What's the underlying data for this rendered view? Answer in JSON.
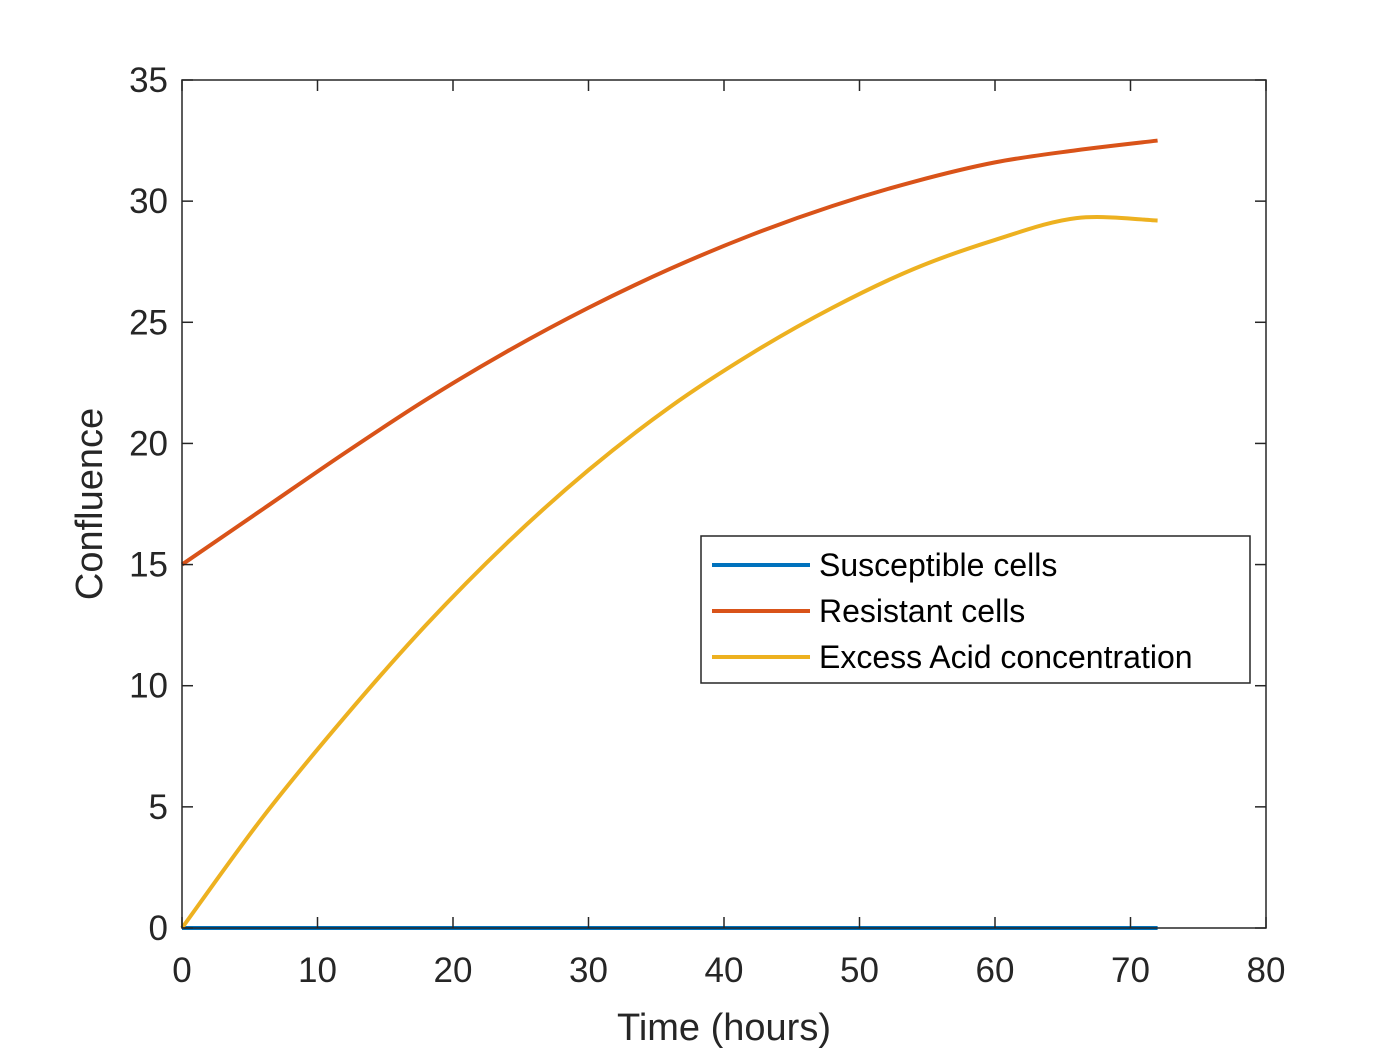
{
  "chart_data": {
    "type": "line",
    "title": "",
    "xlabel": "Time (hours)",
    "ylabel": "Confluence",
    "xlim": [
      0,
      80
    ],
    "ylim": [
      0,
      35
    ],
    "xticks": [
      0,
      10,
      20,
      30,
      40,
      50,
      60,
      70,
      80
    ],
    "yticks": [
      0,
      5,
      10,
      15,
      20,
      25,
      30,
      35
    ],
    "grid": false,
    "legend_position": "center-right",
    "x": [
      0,
      6,
      12,
      18,
      24,
      30,
      36,
      42,
      48,
      54,
      60,
      66,
      72
    ],
    "series": [
      {
        "name": "Susceptible cells",
        "color": "#0072BD",
        "values": [
          0,
          0,
          0,
          0,
          0,
          0,
          0,
          0,
          0,
          0,
          0,
          0,
          0
        ]
      },
      {
        "name": "Resistant cells",
        "color": "#D95319",
        "values": [
          15.0,
          17.3,
          19.6,
          21.8,
          23.8,
          25.6,
          27.2,
          28.6,
          29.8,
          30.8,
          31.6,
          32.1,
          32.5
        ]
      },
      {
        "name": "Excess Acid concentration",
        "color": "#EDB120",
        "values": [
          0,
          4.6,
          8.7,
          12.5,
          15.9,
          18.9,
          21.5,
          23.7,
          25.6,
          27.2,
          28.4,
          29.3,
          29.2
        ]
      }
    ]
  }
}
